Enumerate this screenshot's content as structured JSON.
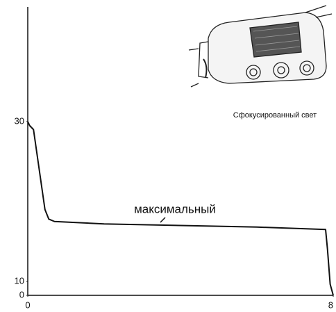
{
  "chart_data": {
    "type": "line",
    "annotation": "максимальный",
    "image_caption": "Сфокусированный свет",
    "x": [
      0,
      0.05,
      0.15,
      0.3,
      0.45,
      0.55,
      0.7,
      2,
      4,
      6,
      7.8,
      7.85,
      7.92,
      8
    ],
    "series": [
      {
        "name": "максимальный",
        "color": "#111111",
        "values": [
          30,
          29.5,
          29,
          24,
          19,
          17.8,
          17.5,
          17.2,
          17.0,
          16.8,
          16.5,
          14,
          8,
          0
        ]
      }
    ],
    "xlim": [
      0,
      8
    ],
    "xticks": [
      0,
      8
    ],
    "ylim": [
      0,
      44
    ],
    "yticks": [
      0,
      10,
      30
    ],
    "grid": false
  }
}
